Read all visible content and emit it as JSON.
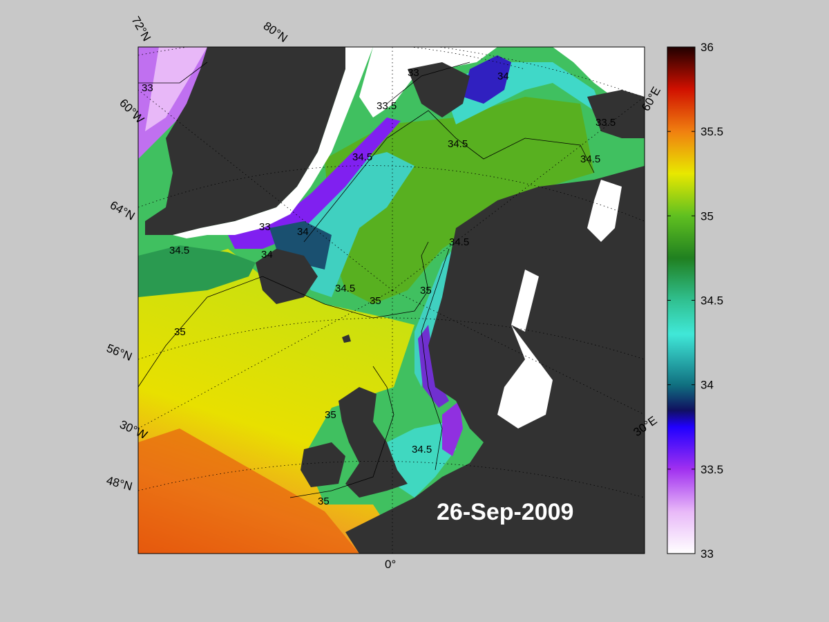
{
  "map": {
    "date_label": "26-Sep-2009",
    "lat_labels": [
      "72°N",
      "80°N",
      "64°N",
      "56°N",
      "48°N"
    ],
    "lon_labels": [
      "60°W",
      "30°W",
      "0°",
      "30°E",
      "60°E"
    ],
    "contour_labels": [
      "33",
      "33.5",
      "34",
      "34.5",
      "35"
    ],
    "colors": {
      "land": "#323232",
      "ice": "#ffffff",
      "background": "#c8c8c8"
    }
  },
  "colorbar": {
    "min": 33,
    "max": 36,
    "ticks": [
      "36",
      "35.5",
      "35",
      "34.5",
      "34",
      "33.5",
      "33"
    ],
    "stops": [
      {
        "v": 33.0,
        "c": "#ffffff"
      },
      {
        "v": 33.25,
        "c": "#e8b8f8"
      },
      {
        "v": 33.5,
        "c": "#a030f0"
      },
      {
        "v": 33.75,
        "c": "#2000ff"
      },
      {
        "v": 33.85,
        "c": "#101060"
      },
      {
        "v": 34.0,
        "c": "#107080"
      },
      {
        "v": 34.3,
        "c": "#40e8d8"
      },
      {
        "v": 34.5,
        "c": "#30c090"
      },
      {
        "v": 34.75,
        "c": "#208020"
      },
      {
        "v": 35.0,
        "c": "#60c020"
      },
      {
        "v": 35.25,
        "c": "#e8e800"
      },
      {
        "v": 35.5,
        "c": "#f08010"
      },
      {
        "v": 35.75,
        "c": "#d01000"
      },
      {
        "v": 36.0,
        "c": "#200000"
      }
    ]
  }
}
